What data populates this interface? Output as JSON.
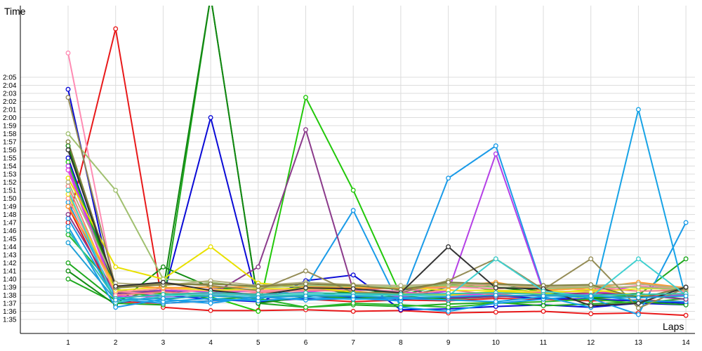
{
  "chart_data": {
    "type": "line",
    "ylabel": "Time",
    "xlabel": "Laps",
    "x": [
      1,
      2,
      3,
      4,
      5,
      6,
      7,
      8,
      9,
      10,
      11,
      12,
      13,
      14
    ],
    "y_ticks": [
      "1:35",
      "1:36",
      "1:37",
      "1:38",
      "1:39",
      "1:40",
      "1:41",
      "1:42",
      "1:43",
      "1:44",
      "1:45",
      "1:46",
      "1:47",
      "1:48",
      "1:49",
      "1:50",
      "1:51",
      "1:52",
      "1:53",
      "1:54",
      "1:55",
      "1:56",
      "1:57",
      "1:58",
      "1:59",
      "2:00",
      "2:01",
      "2:02",
      "2:03",
      "2:04",
      "2:05"
    ],
    "y_unit": "seconds",
    "ylim": [
      94,
      126
    ],
    "grid": true,
    "series": [
      {
        "color": "#e8191a",
        "values": [
          107.0,
          131.0,
          96.5,
          96.1,
          96.1,
          96.2,
          96.0,
          96.1,
          95.8,
          95.9,
          96.0,
          95.7,
          95.8,
          95.5
        ]
      },
      {
        "color": "#e8191a",
        "values": [
          109.0,
          97.2,
          97.0,
          97.3,
          97.4,
          97.5,
          97.2,
          97.4,
          97.3,
          97.6,
          97.5,
          97.3,
          97.4,
          97.2
        ]
      },
      {
        "color": "#0a0ad6",
        "values": [
          115.0,
          98.5,
          97.8,
          120.0,
          97.0,
          99.8,
          100.5,
          96.2,
          96.3,
          96.6,
          96.8,
          96.5,
          97.0,
          96.8
        ]
      },
      {
        "color": "#0a0ad6",
        "values": [
          123.5,
          97.0,
          98.0,
          97.5,
          97.2,
          97.6,
          97.8,
          97.5,
          97.7,
          97.9,
          97.6,
          97.5,
          97.3,
          97.0
        ]
      },
      {
        "color": "#1ea81e",
        "values": [
          100.0,
          97.0,
          96.8,
          135.0,
          97.0,
          96.5,
          96.8,
          96.6,
          96.9,
          97.1,
          96.7,
          96.9,
          97.2,
          96.8
        ]
      },
      {
        "color": "#1ea81e",
        "values": [
          102.0,
          97.3,
          99.0,
          97.5,
          97.8,
          98.0,
          97.6,
          97.9,
          97.5,
          97.8,
          98.0,
          97.7,
          98.0,
          102.5
        ]
      },
      {
        "color": "#128c12",
        "values": [
          101.0,
          96.8,
          101.5,
          99.0,
          98.5,
          99.0,
          98.2,
          98.6,
          99.5,
          99.0,
          98.3,
          98.0,
          98.2,
          97.5
        ]
      },
      {
        "color": "#2ab82a",
        "values": [
          105.5,
          98.8,
          97.5,
          98.0,
          97.6,
          96.5,
          97.0,
          96.8,
          96.5,
          97.0,
          97.2,
          97.5,
          97.0,
          97.6
        ]
      },
      {
        "color": "#22c80a",
        "values": [
          114.5,
          98.6,
          98.2,
          97.8,
          96.0,
          122.5,
          111.0,
          98.0,
          99.4,
          98.6,
          98.0,
          97.8,
          97.8,
          98.0
        ]
      },
      {
        "color": "#138613",
        "values": [
          116.5,
          98.3,
          98.6,
          135.0,
          97.0,
          97.8,
          98.5,
          97.8,
          99.0,
          99.5,
          98.4,
          97.6,
          97.8,
          98.1
        ]
      },
      {
        "color": "#1a9be8",
        "values": [
          107.5,
          97.5,
          97.0,
          97.3,
          97.5,
          99.0,
          108.5,
          96.5,
          96.0,
          97.0,
          97.5,
          98.0,
          97.3,
          97.2
        ]
      },
      {
        "color": "#1a9be8",
        "values": [
          106.5,
          96.5,
          97.5,
          97.0,
          97.8,
          97.4,
          97.6,
          97.3,
          112.5,
          116.5,
          98.6,
          97.6,
          95.6,
          107.0
        ]
      },
      {
        "color": "#17a3e6",
        "values": [
          109.5,
          97.8,
          97.2,
          97.6,
          97.3,
          97.7,
          97.5,
          97.6,
          97.4,
          97.2,
          97.8,
          96.5,
          121.0,
          97.6
        ]
      },
      {
        "color": "#b540e6",
        "values": [
          114.0,
          98.2,
          98.6,
          98.4,
          98.5,
          98.8,
          98.6,
          97.8,
          98.5,
          115.5,
          98.4,
          98.5,
          98.0,
          98.0
        ]
      },
      {
        "color": "#e040e0",
        "values": [
          113.5,
          97.9,
          97.8,
          98.2,
          98.0,
          98.4,
          98.8,
          98.4,
          98.0,
          98.2,
          98.4,
          98.1,
          99.2,
          98.5
        ]
      },
      {
        "color": "#8b3a8b",
        "values": [
          108.0,
          98.2,
          98.5,
          98.0,
          101.5,
          118.5,
          98.6,
          99.0,
          97.6,
          97.8,
          98.0,
          98.3,
          98.0,
          97.5
        ]
      },
      {
        "color": "#ff8cb4",
        "values": [
          128.0,
          98.5,
          98.0,
          98.8,
          98.4,
          98.9,
          98.7,
          98.5,
          99.0,
          98.8,
          99.1,
          98.6,
          99.2,
          98.3
        ]
      },
      {
        "color": "#f08080",
        "values": [
          111.5,
          98.0,
          98.4,
          98.0,
          98.3,
          98.6,
          98.5,
          98.0,
          98.7,
          98.0,
          98.6,
          98.9,
          98.5,
          98.6
        ]
      },
      {
        "color": "#ff9090",
        "values": [
          110.0,
          98.4,
          98.8,
          98.5,
          98.6,
          98.7,
          98.9,
          98.9,
          99.0,
          99.3,
          98.9,
          99.0,
          99.5,
          98.5
        ]
      },
      {
        "color": "#e8e000",
        "values": [
          112.5,
          101.5,
          100.0,
          104.0,
          99.5,
          99.0,
          98.4,
          98.2,
          98.0,
          98.5,
          98.2,
          98.7,
          98.0,
          98.2
        ]
      },
      {
        "color": "#f0e020",
        "values": [
          110.5,
          98.6,
          99.0,
          98.6,
          98.8,
          98.8,
          99.0,
          99.0,
          98.6,
          98.6,
          98.5,
          98.4,
          98.8,
          98.8
        ]
      },
      {
        "color": "#ff9a30",
        "values": [
          109.0,
          99.2,
          98.9,
          99.0,
          99.0,
          99.1,
          98.9,
          98.8,
          99.1,
          99.6,
          98.6,
          98.9,
          99.6,
          98.9
        ]
      },
      {
        "color": "#a0c070",
        "values": [
          118.0,
          111.0,
          100.0,
          99.6,
          98.9,
          99.2,
          99.1,
          99.0,
          99.2,
          99.0,
          98.8,
          99.0,
          99.0,
          98.7
        ]
      },
      {
        "color": "#b4b080",
        "values": [
          112.0,
          99.5,
          99.2,
          99.8,
          99.2,
          99.6,
          99.3,
          99.2,
          99.4,
          99.3,
          99.0,
          99.2,
          99.4,
          98.8
        ]
      },
      {
        "color": "#948c56",
        "values": [
          122.5,
          99.0,
          99.5,
          99.2,
          98.6,
          101.0,
          98.3,
          98.3,
          99.8,
          102.5,
          98.7,
          102.5,
          96.4,
          98.9
        ]
      },
      {
        "color": "#808040",
        "values": [
          117.0,
          98.9,
          99.3,
          99.4,
          99.1,
          99.4,
          99.2,
          98.7,
          99.6,
          99.4,
          99.2,
          99.3,
          97.6,
          99.0
        ]
      },
      {
        "color": "#333333",
        "values": [
          116.0,
          99.1,
          99.6,
          98.6,
          98.0,
          98.9,
          98.8,
          98.3,
          104.0,
          98.9,
          98.8,
          96.7,
          97.0,
          99.0
        ]
      },
      {
        "color": "#40d0d0",
        "values": [
          111.0,
          97.1,
          97.9,
          98.1,
          97.9,
          98.1,
          98.0,
          98.0,
          97.9,
          102.5,
          98.5,
          97.8,
          102.5,
          98.0
        ]
      },
      {
        "color": "#30c0b0",
        "values": [
          106.0,
          97.6,
          98.1,
          98.3,
          98.1,
          98.3,
          98.2,
          98.1,
          98.2,
          98.3,
          98.1,
          98.0,
          98.1,
          98.2
        ]
      },
      {
        "color": "#20a0d8",
        "values": [
          104.5,
          97.4,
          97.6,
          97.9,
          97.7,
          97.9,
          97.9,
          97.7,
          97.8,
          98.0,
          97.9,
          97.9,
          97.7,
          97.9
        ]
      }
    ]
  }
}
